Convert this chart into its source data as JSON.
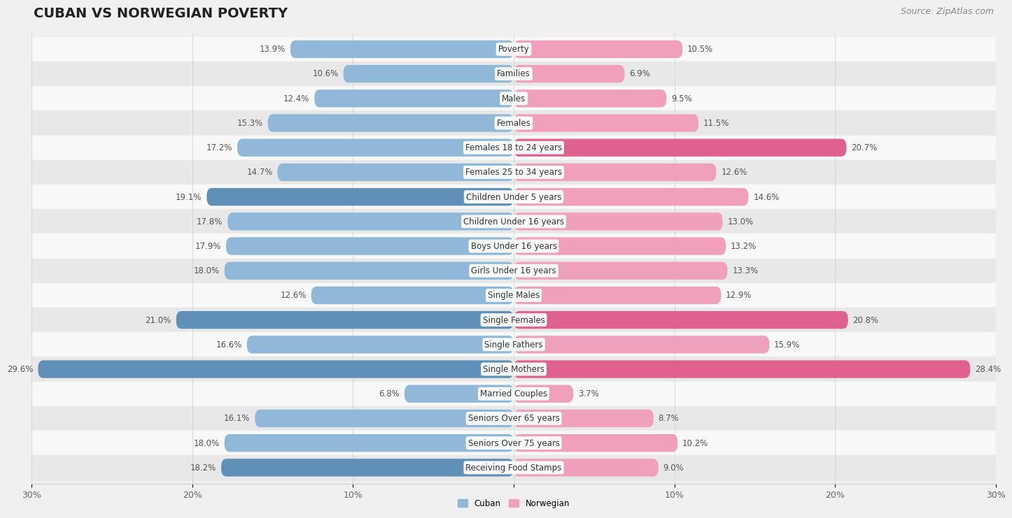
{
  "title": "CUBAN VS NORWEGIAN POVERTY",
  "source": "Source: ZipAtlas.com",
  "categories": [
    "Poverty",
    "Families",
    "Males",
    "Females",
    "Females 18 to 24 years",
    "Females 25 to 34 years",
    "Children Under 5 years",
    "Children Under 16 years",
    "Boys Under 16 years",
    "Girls Under 16 years",
    "Single Males",
    "Single Females",
    "Single Fathers",
    "Single Mothers",
    "Married Couples",
    "Seniors Over 65 years",
    "Seniors Over 75 years",
    "Receiving Food Stamps"
  ],
  "cuban": [
    13.9,
    10.6,
    12.4,
    15.3,
    17.2,
    14.7,
    19.1,
    17.8,
    17.9,
    18.0,
    12.6,
    21.0,
    16.6,
    29.6,
    6.8,
    16.1,
    18.0,
    18.2
  ],
  "norwegian": [
    10.5,
    6.9,
    9.5,
    11.5,
    20.7,
    12.6,
    14.6,
    13.0,
    13.2,
    13.3,
    12.9,
    20.8,
    15.9,
    28.4,
    3.7,
    8.7,
    10.2,
    9.0
  ],
  "cuban_color": "#90b8d8",
  "norwegian_color": "#f0a0bc",
  "cuban_highlight_indices": [
    6,
    11,
    13,
    17
  ],
  "norwegian_highlight_indices": [
    4,
    11,
    13
  ],
  "cuban_highlight_color": "#6090b8",
  "norwegian_highlight_color": "#e06090",
  "background_color": "#f0f0f0",
  "row_bg_odd": "#e8e8e8",
  "row_bg_even": "#f8f8f8",
  "axis_max": 30.0,
  "bar_height": 0.72,
  "title_fontsize": 14,
  "source_fontsize": 9,
  "label_fontsize": 8.5,
  "value_fontsize": 8.5,
  "tick_fontsize": 9
}
